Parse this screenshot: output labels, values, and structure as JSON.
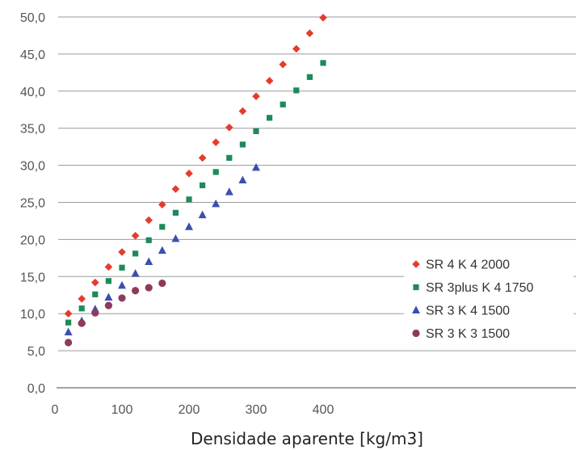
{
  "chart_data": {
    "type": "scatter",
    "title": "",
    "xlabel": "Densidade aparente [kg/m3]",
    "ylabel": "",
    "xlim": [
      0,
      450
    ],
    "ylim": [
      0,
      50
    ],
    "x_ticks": [
      "0",
      "100",
      "200",
      "300",
      "400"
    ],
    "y_ticks": [
      "0,0",
      "5,0",
      "10,0",
      "15,0",
      "20,0",
      "25,0",
      "30,0",
      "35,0",
      "40,0",
      "45,0",
      "50,0"
    ],
    "grid": "horizontal",
    "legend_position": "bottom-right",
    "series": [
      {
        "name": "SR 4 K 4 2000",
        "marker": "diamond",
        "color": "#e63b2e",
        "x": [
          20,
          40,
          60,
          80,
          100,
          120,
          140,
          160,
          180,
          200,
          220,
          240,
          260,
          280,
          300,
          320,
          340,
          360,
          380,
          400
        ],
        "y": [
          10.0,
          12.0,
          14.2,
          16.3,
          18.3,
          20.5,
          22.6,
          24.7,
          26.8,
          28.9,
          31.0,
          33.1,
          35.1,
          37.3,
          39.3,
          41.4,
          43.6,
          45.7,
          47.8,
          49.9
        ]
      },
      {
        "name": "SR 3plus K 4 1750",
        "marker": "square",
        "color": "#1e8a5a",
        "x": [
          20,
          40,
          60,
          80,
          100,
          120,
          140,
          160,
          180,
          200,
          220,
          240,
          260,
          280,
          300,
          320,
          340,
          360,
          380,
          400
        ],
        "y": [
          8.8,
          10.7,
          12.6,
          14.4,
          16.2,
          18.1,
          19.9,
          21.7,
          23.6,
          25.4,
          27.3,
          29.1,
          31.0,
          32.8,
          34.6,
          36.4,
          38.2,
          40.1,
          41.9,
          43.8
        ]
      },
      {
        "name": "SR 3 K 4 1500",
        "marker": "triangle",
        "color": "#3c4fb0",
        "x": [
          20,
          40,
          60,
          80,
          100,
          120,
          140,
          160,
          180,
          200,
          220,
          240,
          260,
          280,
          300
        ],
        "y": [
          7.5,
          9.0,
          10.6,
          12.2,
          13.8,
          15.4,
          17.0,
          18.5,
          20.1,
          21.7,
          23.3,
          24.8,
          26.4,
          28.0,
          29.7
        ]
      },
      {
        "name": "SR 3 K 3 1500",
        "marker": "circle",
        "color": "#8e3a5e",
        "x": [
          20,
          40,
          60,
          80,
          100,
          120,
          140,
          160
        ],
        "y": [
          6.1,
          8.7,
          10.1,
          11.1,
          12.1,
          13.1,
          13.5,
          14.1
        ]
      }
    ]
  }
}
